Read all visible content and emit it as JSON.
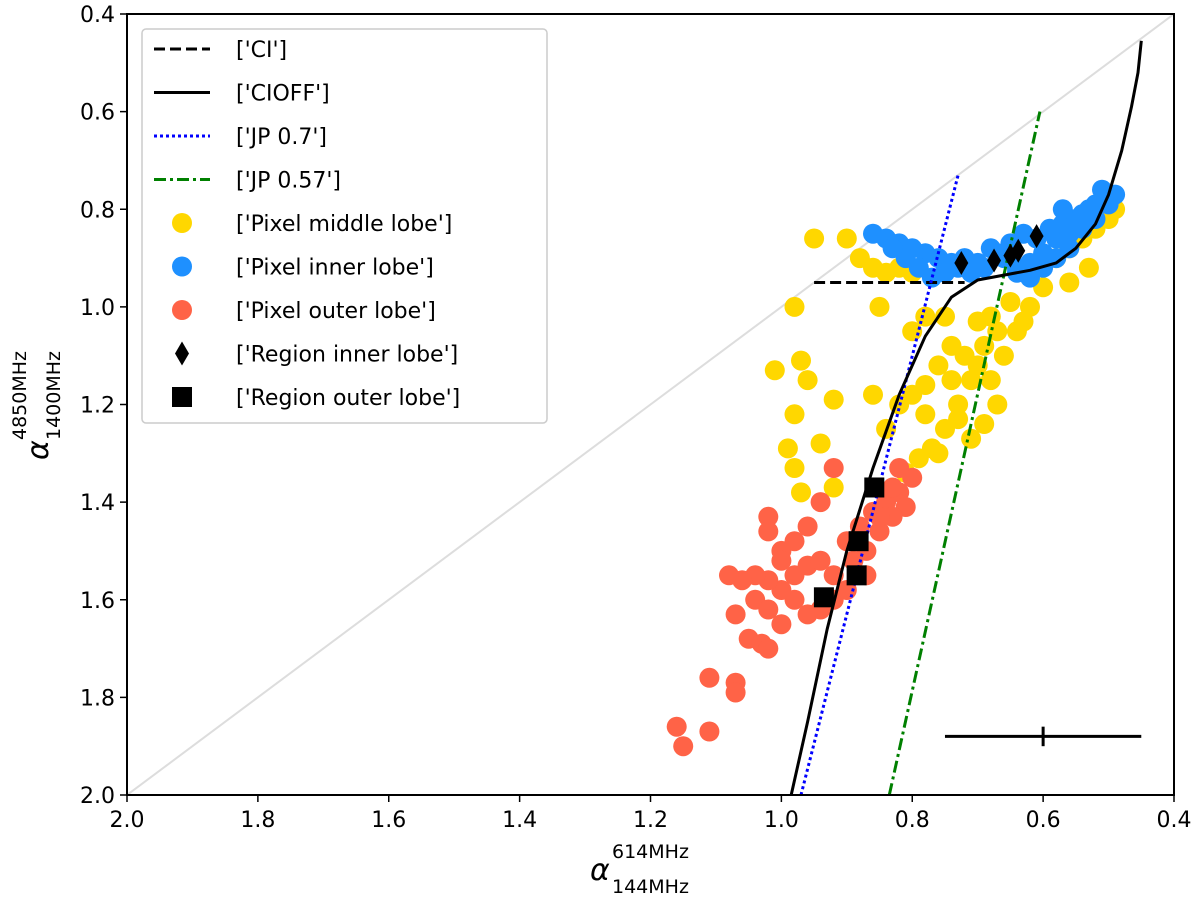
{
  "chart_data": {
    "type": "scatter",
    "xlabel": {
      "symbol": "α",
      "sup": "614MHz",
      "sub": "144MHz"
    },
    "ylabel": {
      "symbol": "α",
      "sup": "4850MHz",
      "sub": "1400MHz"
    },
    "xlim": [
      2.0,
      0.4
    ],
    "ylim": [
      2.0,
      0.4
    ],
    "x_ticks": [
      "2.0",
      "1.8",
      "1.6",
      "1.4",
      "1.2",
      "1.0",
      "0.8",
      "0.6",
      "0.4"
    ],
    "y_ticks": [
      "0.4",
      "0.6",
      "0.8",
      "1.0",
      "1.2",
      "1.4",
      "1.6",
      "1.8",
      "2.0"
    ],
    "legend_position": "top-left",
    "colors": {
      "ci": "#000000",
      "cioff": "#000000",
      "jp07": "#0000ff",
      "jp057": "#008000",
      "middle": "#ffd700",
      "inner": "#1e90ff",
      "outer": "#ff6347",
      "diagonal": "#dddddd"
    },
    "legend": [
      {
        "key": "ci",
        "label": "['CI']",
        "marker": "dashed-line"
      },
      {
        "key": "cioff",
        "label": "['CIOFF']",
        "marker": "solid-line"
      },
      {
        "key": "jp07",
        "label": "['JP 0.7']",
        "marker": "dotted-line"
      },
      {
        "key": "jp057",
        "label": "['JP 0.57']",
        "marker": "dashdot-line"
      },
      {
        "key": "middle",
        "label": "['Pixel middle lobe']",
        "marker": "circle"
      },
      {
        "key": "inner",
        "label": "['Pixel inner lobe']",
        "marker": "circle"
      },
      {
        "key": "outer",
        "label": "['Pixel outer lobe']",
        "marker": "circle"
      },
      {
        "key": "region_inner",
        "label": "['Region inner lobe']",
        "marker": "diamond"
      },
      {
        "key": "region_outer",
        "label": "['Region outer lobe']",
        "marker": "square"
      }
    ],
    "lines": {
      "diagonal": [
        [
          2.0,
          2.0
        ],
        [
          0.4,
          0.4
        ]
      ],
      "ci": [
        [
          0.95,
          0.95
        ],
        [
          0.72,
          0.95
        ]
      ],
      "cioff": [
        [
          0.985,
          2.0
        ],
        [
          0.96,
          1.85
        ],
        [
          0.93,
          1.66
        ],
        [
          0.9,
          1.5
        ],
        [
          0.86,
          1.33
        ],
        [
          0.82,
          1.18
        ],
        [
          0.78,
          1.06
        ],
        [
          0.74,
          0.98
        ],
        [
          0.7,
          0.945
        ],
        [
          0.66,
          0.935
        ],
        [
          0.62,
          0.925
        ],
        [
          0.58,
          0.91
        ],
        [
          0.55,
          0.88
        ],
        [
          0.52,
          0.83
        ],
        [
          0.5,
          0.77
        ],
        [
          0.48,
          0.68
        ],
        [
          0.465,
          0.59
        ],
        [
          0.455,
          0.52
        ],
        [
          0.45,
          0.455
        ]
      ],
      "jp07": [
        [
          0.97,
          2.0
        ],
        [
          0.73,
          0.73
        ]
      ],
      "jp057": [
        [
          0.835,
          2.0
        ],
        [
          0.605,
          0.6
        ]
      ]
    },
    "series": [
      {
        "name": "Pixel middle lobe",
        "key": "middle",
        "points": [
          [
            0.95,
            0.86
          ],
          [
            0.9,
            0.86
          ],
          [
            0.88,
            0.9
          ],
          [
            0.86,
            0.92
          ],
          [
            0.84,
            0.93
          ],
          [
            0.82,
            0.92
          ],
          [
            0.8,
            0.93
          ],
          [
            0.98,
            1.0
          ],
          [
            0.85,
            1.0
          ],
          [
            0.8,
            1.05
          ],
          [
            0.78,
            1.02
          ],
          [
            1.01,
            1.13
          ],
          [
            0.97,
            1.11
          ],
          [
            0.96,
            1.15
          ],
          [
            0.86,
            1.18
          ],
          [
            0.92,
            1.19
          ],
          [
            0.98,
            1.22
          ],
          [
            0.99,
            1.29
          ],
          [
            0.94,
            1.28
          ],
          [
            0.98,
            1.33
          ],
          [
            0.97,
            1.38
          ],
          [
            0.92,
            1.37
          ],
          [
            0.75,
            1.02
          ],
          [
            0.74,
            1.08
          ],
          [
            0.72,
            1.1
          ],
          [
            0.7,
            1.12
          ],
          [
            0.68,
            1.15
          ],
          [
            0.66,
            1.1
          ],
          [
            0.64,
            1.05
          ],
          [
            0.62,
            1.0
          ],
          [
            0.6,
            0.96
          ],
          [
            0.58,
            0.9
          ],
          [
            0.56,
            0.88
          ],
          [
            0.54,
            0.86
          ],
          [
            0.52,
            0.84
          ],
          [
            0.5,
            0.82
          ],
          [
            0.49,
            0.8
          ],
          [
            0.53,
            0.92
          ],
          [
            0.56,
            0.95
          ],
          [
            0.63,
            1.03
          ],
          [
            0.67,
            1.05
          ],
          [
            0.69,
            1.08
          ],
          [
            0.71,
            1.15
          ],
          [
            0.73,
            1.2
          ],
          [
            0.75,
            1.25
          ],
          [
            0.77,
            1.29
          ],
          [
            0.79,
            1.31
          ],
          [
            0.81,
            1.34
          ],
          [
            0.76,
            1.3
          ],
          [
            0.78,
            1.22
          ],
          [
            0.8,
            1.18
          ],
          [
            0.82,
            1.2
          ],
          [
            0.84,
            1.25
          ],
          [
            0.74,
            1.15
          ],
          [
            0.76,
            1.12
          ],
          [
            0.78,
            1.16
          ],
          [
            0.7,
            1.03
          ],
          [
            0.68,
            1.02
          ],
          [
            0.65,
            0.99
          ],
          [
            0.67,
            1.2
          ],
          [
            0.69,
            1.24
          ],
          [
            0.71,
            1.27
          ],
          [
            0.73,
            1.23
          ]
        ]
      },
      {
        "name": "Pixel inner lobe",
        "key": "inner",
        "points": [
          [
            0.86,
            0.85
          ],
          [
            0.84,
            0.86
          ],
          [
            0.82,
            0.87
          ],
          [
            0.8,
            0.88
          ],
          [
            0.78,
            0.89
          ],
          [
            0.76,
            0.9
          ],
          [
            0.74,
            0.91
          ],
          [
            0.72,
            0.9
          ],
          [
            0.7,
            0.91
          ],
          [
            0.68,
            0.88
          ],
          [
            0.66,
            0.9
          ],
          [
            0.64,
            0.92
          ],
          [
            0.62,
            0.91
          ],
          [
            0.6,
            0.89
          ],
          [
            0.58,
            0.86
          ],
          [
            0.56,
            0.85
          ],
          [
            0.54,
            0.84
          ],
          [
            0.52,
            0.82
          ],
          [
            0.5,
            0.79
          ],
          [
            0.49,
            0.77
          ],
          [
            0.51,
            0.76
          ],
          [
            0.53,
            0.8
          ],
          [
            0.55,
            0.82
          ],
          [
            0.57,
            0.83
          ],
          [
            0.59,
            0.84
          ],
          [
            0.61,
            0.86
          ],
          [
            0.63,
            0.85
          ],
          [
            0.65,
            0.87
          ],
          [
            0.67,
            0.89
          ],
          [
            0.69,
            0.92
          ],
          [
            0.71,
            0.93
          ],
          [
            0.73,
            0.92
          ],
          [
            0.75,
            0.93
          ],
          [
            0.77,
            0.94
          ],
          [
            0.79,
            0.92
          ],
          [
            0.81,
            0.9
          ],
          [
            0.83,
            0.88
          ],
          [
            0.56,
            0.88
          ],
          [
            0.58,
            0.9
          ],
          [
            0.6,
            0.92
          ],
          [
            0.62,
            0.94
          ],
          [
            0.64,
            0.93
          ],
          [
            0.52,
            0.79
          ],
          [
            0.54,
            0.81
          ],
          [
            0.57,
            0.8
          ]
        ]
      },
      {
        "name": "Pixel outer lobe",
        "key": "outer",
        "points": [
          [
            0.92,
            1.33
          ],
          [
            0.94,
            1.4
          ],
          [
            0.96,
            1.45
          ],
          [
            0.98,
            1.48
          ],
          [
            1.0,
            1.5
          ],
          [
            1.02,
            1.43
          ],
          [
            1.02,
            1.46
          ],
          [
            1.0,
            1.52
          ],
          [
            0.98,
            1.55
          ],
          [
            0.96,
            1.53
          ],
          [
            0.94,
            1.52
          ],
          [
            0.92,
            1.55
          ],
          [
            0.9,
            1.58
          ],
          [
            0.92,
            1.6
          ],
          [
            0.94,
            1.62
          ],
          [
            0.96,
            1.63
          ],
          [
            0.98,
            1.6
          ],
          [
            1.0,
            1.58
          ],
          [
            1.02,
            1.56
          ],
          [
            1.04,
            1.55
          ],
          [
            1.06,
            1.56
          ],
          [
            1.08,
            1.55
          ],
          [
            1.04,
            1.6
          ],
          [
            1.02,
            1.62
          ],
          [
            1.0,
            1.65
          ],
          [
            1.05,
            1.68
          ],
          [
            1.07,
            1.63
          ],
          [
            1.03,
            1.69
          ],
          [
            1.02,
            1.7
          ],
          [
            1.07,
            1.77
          ],
          [
            1.11,
            1.76
          ],
          [
            1.07,
            1.79
          ],
          [
            1.16,
            1.86
          ],
          [
            1.15,
            1.9
          ],
          [
            1.11,
            1.87
          ],
          [
            0.9,
            1.48
          ],
          [
            0.88,
            1.45
          ],
          [
            0.86,
            1.42
          ],
          [
            0.84,
            1.4
          ],
          [
            0.82,
            1.38
          ],
          [
            0.8,
            1.35
          ],
          [
            0.81,
            1.41
          ],
          [
            0.83,
            1.43
          ],
          [
            0.85,
            1.46
          ],
          [
            0.87,
            1.5
          ],
          [
            0.89,
            1.52
          ],
          [
            0.87,
            1.55
          ],
          [
            0.85,
            1.43
          ],
          [
            0.83,
            1.37
          ],
          [
            0.82,
            1.33
          ]
        ]
      },
      {
        "name": "Region inner lobe",
        "key": "region_inner",
        "points": [
          [
            0.725,
            0.91
          ],
          [
            0.675,
            0.905
          ],
          [
            0.65,
            0.895
          ],
          [
            0.638,
            0.885
          ],
          [
            0.61,
            0.855
          ]
        ]
      },
      {
        "name": "Region outer lobe",
        "key": "region_outer",
        "points": [
          [
            0.858,
            1.37
          ],
          [
            0.882,
            1.48
          ],
          [
            0.885,
            1.55
          ],
          [
            0.935,
            1.595
          ]
        ]
      }
    ],
    "error_bar": {
      "x": 0.6,
      "y": 1.88,
      "xerr": 0.15,
      "yerr": 0.02
    }
  }
}
